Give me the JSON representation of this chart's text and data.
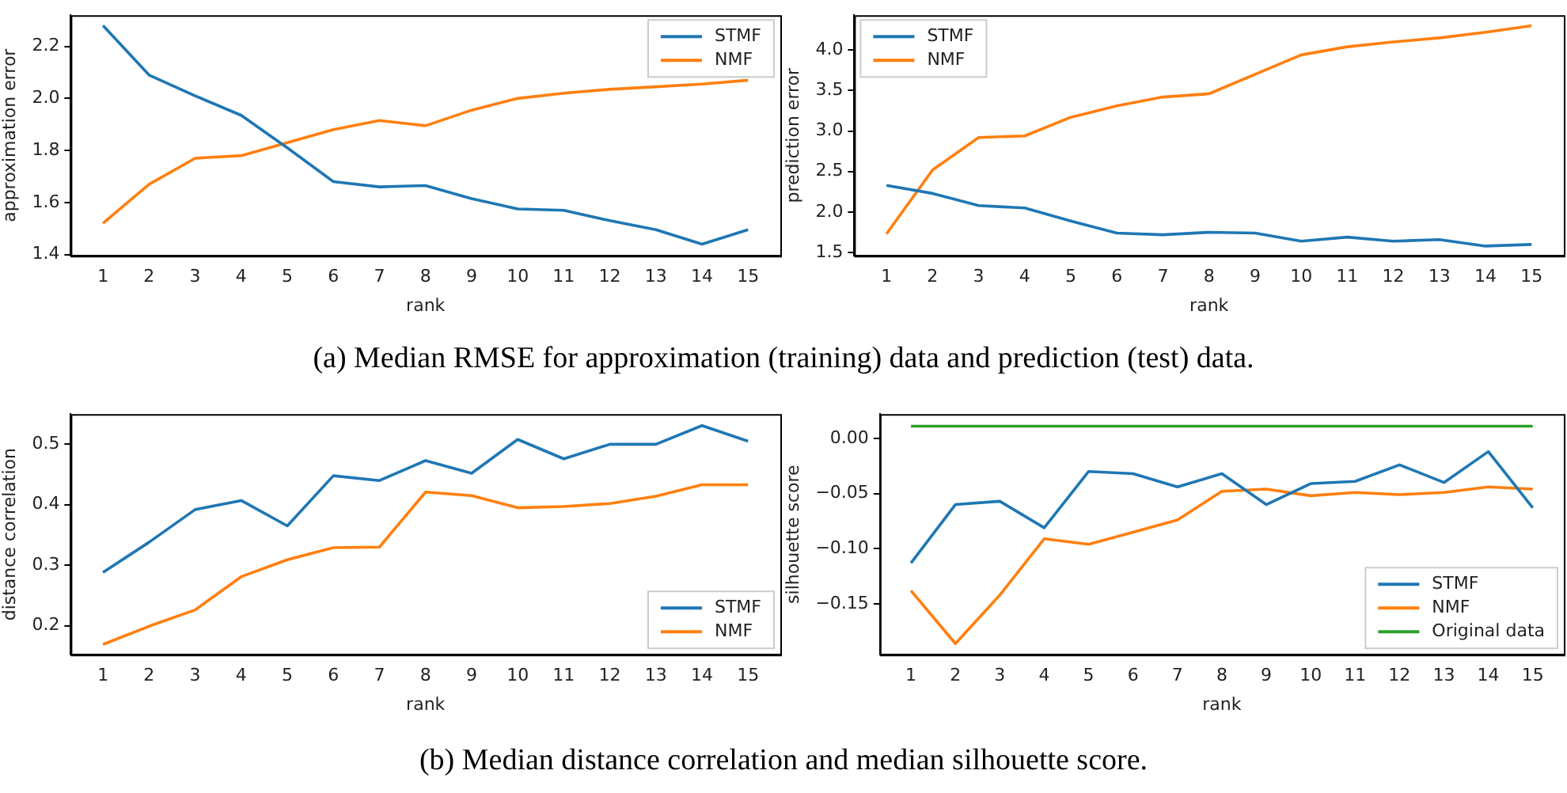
{
  "chart_data": [
    {
      "type": "line",
      "xlabel": "rank",
      "ylabel": "approximation error",
      "x": [
        1,
        2,
        3,
        4,
        5,
        6,
        7,
        8,
        9,
        10,
        11,
        12,
        13,
        14,
        15
      ],
      "xlim": [
        0.3,
        15.7
      ],
      "xticks": [
        1,
        2,
        3,
        4,
        5,
        6,
        7,
        8,
        9,
        10,
        11,
        12,
        13,
        14,
        15
      ],
      "ylim": [
        1.395,
        2.32
      ],
      "yticks": [
        1.4,
        1.6,
        1.8,
        {
          "value": 2.0,
          "label": "2.0"
        },
        2.2
      ],
      "legend": "top right",
      "grid": false,
      "series": [
        {
          "name": "STMF",
          "color": "#1f77b4",
          "values": [
            2.28,
            2.09,
            2.01,
            1.935,
            1.81,
            1.68,
            1.66,
            1.665,
            1.615,
            1.575,
            1.57,
            1.53,
            1.495,
            1.44,
            1.495
          ]
        },
        {
          "name": "NMF",
          "color": "#ff7f0e",
          "values": [
            1.52,
            1.67,
            1.77,
            1.78,
            1.83,
            1.88,
            1.915,
            1.895,
            1.955,
            2.0,
            2.02,
            2.035,
            2.045,
            2.055,
            2.07
          ]
        }
      ],
      "annotations": [
        "(a) Median RMSE for approximation (training) data and prediction (test) data."
      ]
    },
    {
      "type": "line",
      "xlabel": "rank",
      "ylabel": "prediction error",
      "x": [
        1,
        2,
        3,
        4,
        5,
        6,
        7,
        8,
        9,
        10,
        11,
        12,
        13,
        14,
        15
      ],
      "xlim": [
        0.3,
        15.7
      ],
      "xticks": [
        1,
        2,
        3,
        4,
        5,
        6,
        7,
        8,
        9,
        10,
        11,
        12,
        13,
        14,
        15
      ],
      "ylim": [
        1.46,
        4.43
      ],
      "yticks": [
        1.5,
        {
          "value": 2.0,
          "label": "2.0"
        },
        2.5,
        {
          "value": 3.0,
          "label": "3.0"
        },
        3.5,
        {
          "value": 4.0,
          "label": "4.0"
        }
      ],
      "legend": "top left",
      "grid": false,
      "series": [
        {
          "name": "STMF",
          "color": "#1f77b4",
          "values": [
            2.33,
            2.23,
            2.08,
            2.05,
            1.89,
            1.74,
            1.72,
            1.75,
            1.74,
            1.64,
            1.69,
            1.64,
            1.66,
            1.58,
            1.6
          ]
        },
        {
          "name": "NMF",
          "color": "#ff7f0e",
          "values": [
            1.73,
            2.52,
            2.92,
            2.94,
            3.17,
            3.31,
            3.42,
            3.46,
            3.7,
            3.94,
            4.04,
            4.1,
            4.15,
            4.22,
            4.3
          ]
        }
      ]
    },
    {
      "type": "line",
      "xlabel": "rank",
      "ylabel": "distance correlation",
      "x": [
        1,
        2,
        3,
        4,
        5,
        6,
        7,
        8,
        9,
        10,
        11,
        12,
        13,
        14,
        15
      ],
      "xlim": [
        0.3,
        15.7
      ],
      "xticks": [
        1,
        2,
        3,
        4,
        5,
        6,
        7,
        8,
        9,
        10,
        11,
        12,
        13,
        14,
        15
      ],
      "ylim": [
        0.152,
        0.55
      ],
      "yticks": [
        0.2,
        0.3,
        0.4,
        0.5
      ],
      "legend": "bottom right",
      "grid": false,
      "series": [
        {
          "name": "STMF",
          "color": "#1f77b4",
          "values": [
            0.288,
            0.338,
            0.392,
            0.407,
            0.365,
            0.448,
            0.44,
            0.473,
            0.452,
            0.508,
            0.476,
            0.5,
            0.5,
            0.531,
            0.505
          ]
        },
        {
          "name": "NMF",
          "color": "#ff7f0e",
          "values": [
            0.169,
            0.199,
            0.226,
            0.281,
            0.309,
            0.329,
            0.33,
            0.421,
            0.415,
            0.395,
            0.397,
            0.402,
            0.414,
            0.433,
            0.433
          ]
        }
      ],
      "annotations": [
        "(b) Median distance correlation and median silhouette score."
      ]
    },
    {
      "type": "line",
      "xlabel": "rank",
      "ylabel": "silhouette score",
      "x": [
        1,
        2,
        3,
        4,
        5,
        6,
        7,
        8,
        9,
        10,
        11,
        12,
        13,
        14,
        15
      ],
      "xlim": [
        0.3,
        15.7
      ],
      "xticks": [
        1,
        2,
        3,
        4,
        5,
        6,
        7,
        8,
        9,
        10,
        11,
        12,
        13,
        14,
        15
      ],
      "ylim": [
        -0.196,
        0.022
      ],
      "yticks": [
        {
          "value": -0.15,
          "label": "−0.15"
        },
        {
          "value": -0.1,
          "label": "−0.10"
        },
        {
          "value": -0.05,
          "label": "−0.05"
        },
        {
          "value": 0,
          "label": "0.00"
        }
      ],
      "legend": "bottom right",
      "grid": false,
      "series": [
        {
          "name": "STMF",
          "color": "#1f77b4",
          "values": [
            -0.113,
            -0.06,
            -0.057,
            -0.081,
            -0.03,
            -0.032,
            -0.044,
            -0.032,
            -0.06,
            -0.041,
            -0.039,
            -0.024,
            -0.04,
            -0.012,
            -0.063
          ]
        },
        {
          "name": "NMF",
          "color": "#ff7f0e",
          "values": [
            -0.138,
            -0.186,
            -0.142,
            -0.091,
            -0.096,
            -0.085,
            -0.074,
            -0.048,
            -0.046,
            -0.052,
            -0.049,
            -0.051,
            -0.049,
            -0.044,
            -0.046
          ]
        },
        {
          "name": "Original data",
          "color": "#2ca02c",
          "values": [
            0.011,
            0.011,
            0.011,
            0.011,
            0.011,
            0.011,
            0.011,
            0.011,
            0.011,
            0.011,
            0.011,
            0.011,
            0.011,
            0.011,
            0.011
          ]
        }
      ]
    }
  ]
}
